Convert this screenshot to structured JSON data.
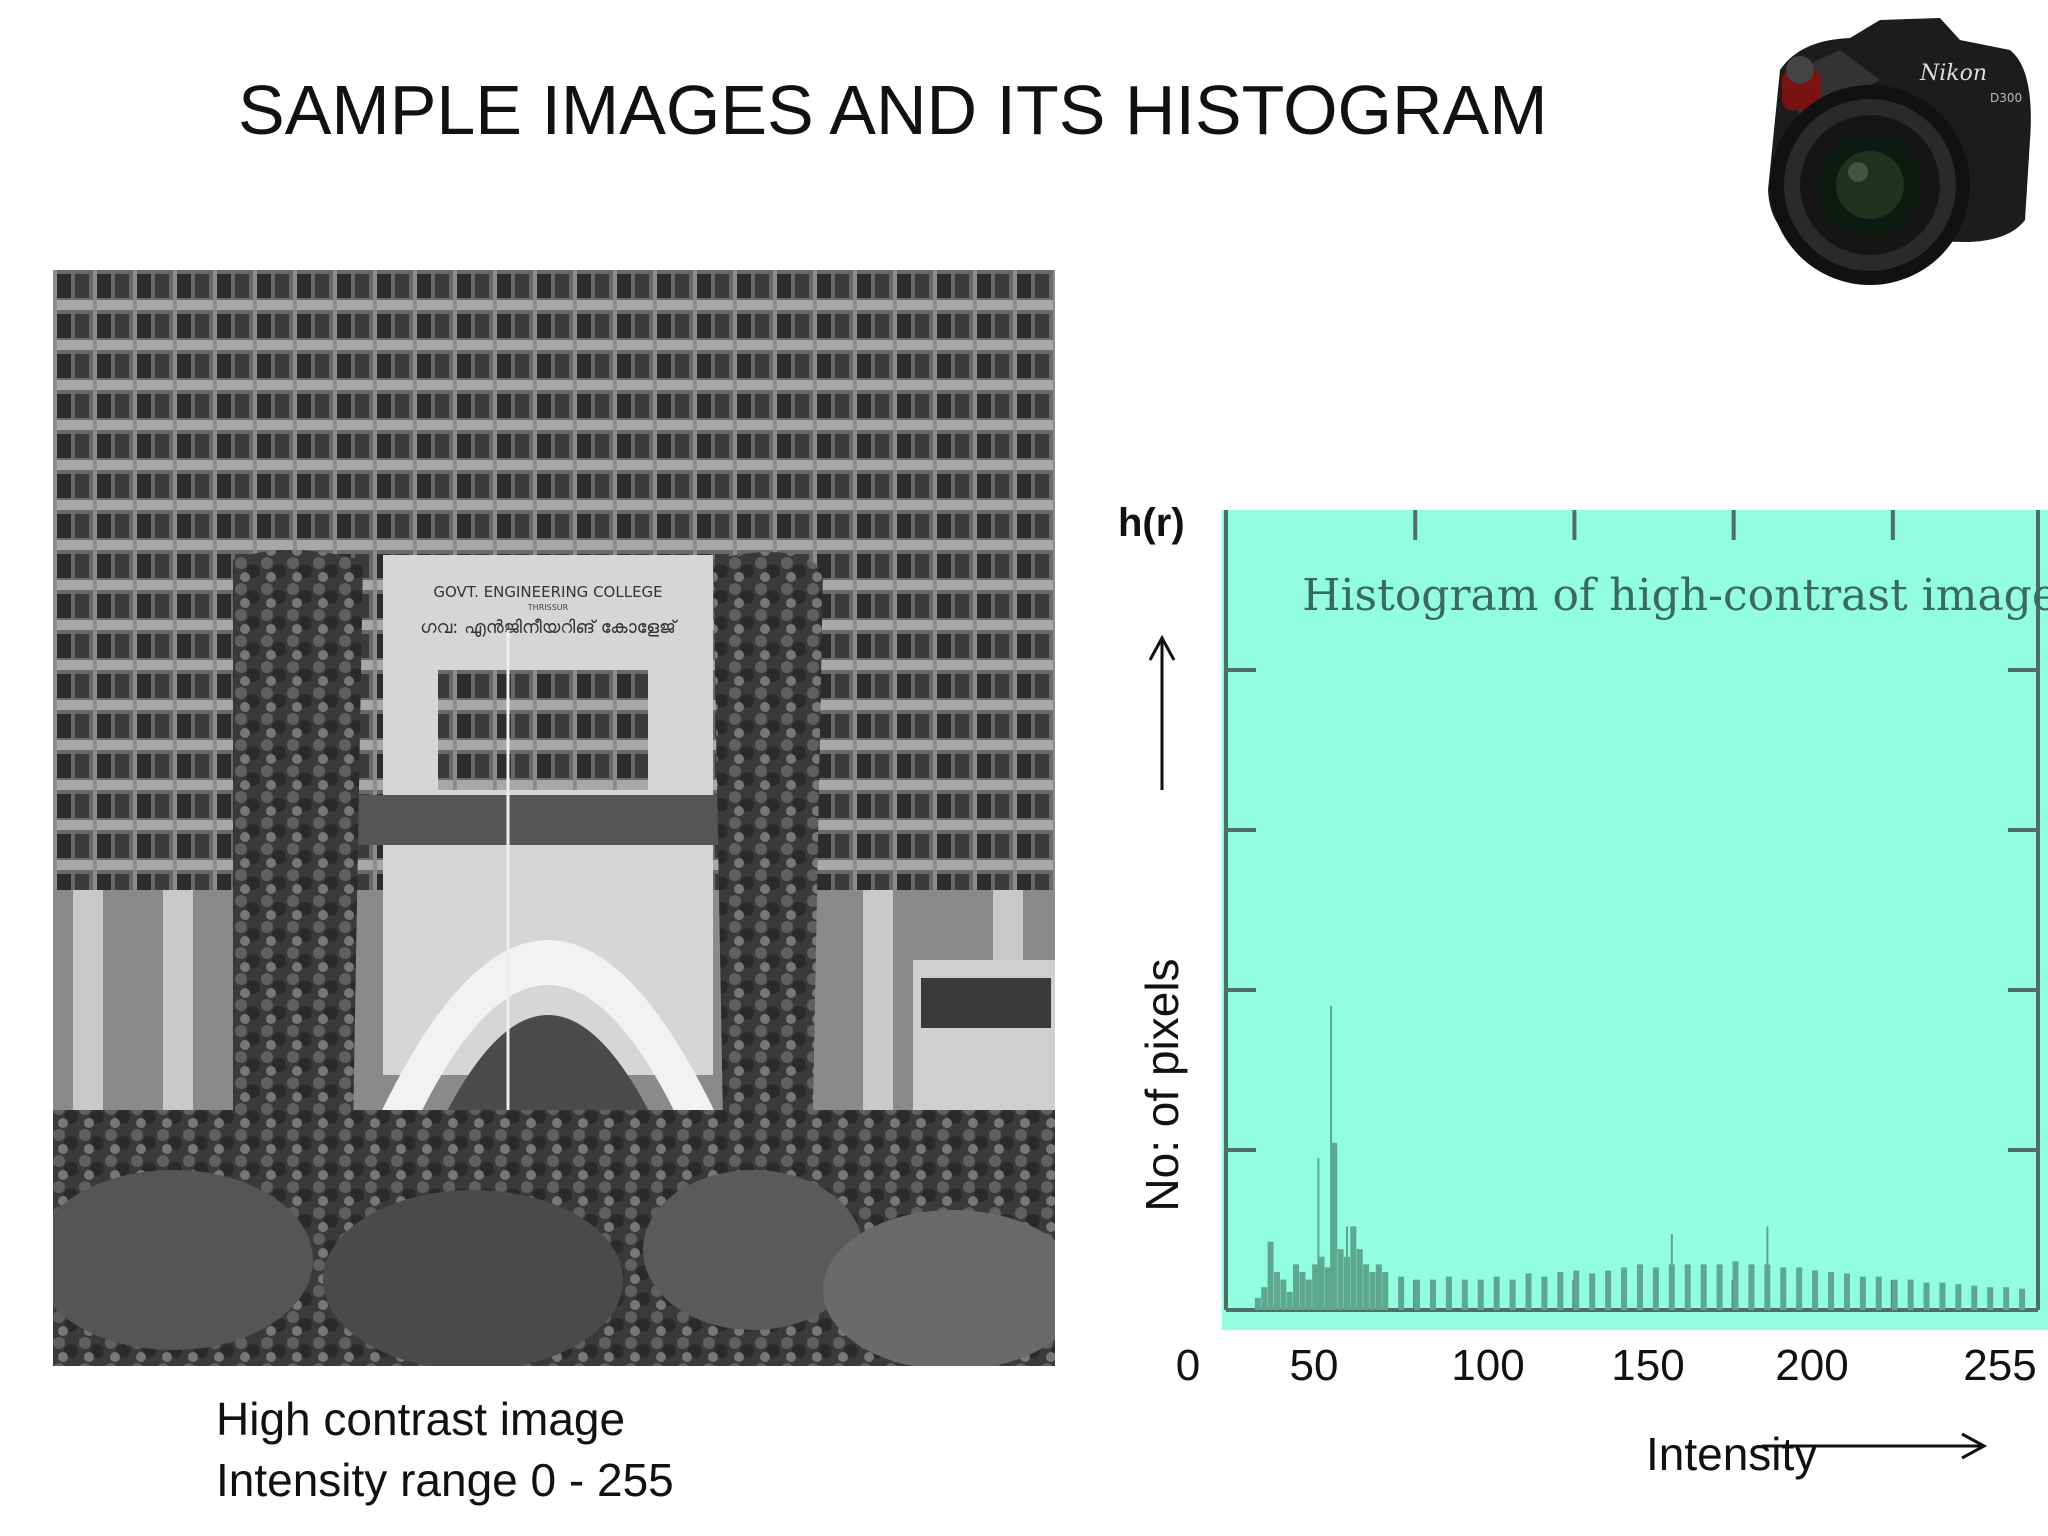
{
  "slide": {
    "title": "SAMPLE IMAGES AND ITS HISTOGRAM",
    "caption_line1": "High contrast image",
    "caption_line2": "Intensity range 0 -  255",
    "photo_sign_line1": "GOVT. ENGINEERING  COLLEGE",
    "photo_sign_line2": "ഗവ: എന്‍ജിനീയറിങ് കോളേജ്",
    "photo_sign_line3": "THRISSUR",
    "camera_brand": "Nikon",
    "camera_model": "D300"
  },
  "colors": {
    "plot_bg": "#93fde0",
    "bars": "#5da88f",
    "axis": "#4f6f66",
    "title_on_plot": "#3a6a5f"
  },
  "chart_data": {
    "type": "bar",
    "title": "Histogram of high-contrast image",
    "ylabel_short": "h(r)",
    "ylabel": "No: of pixels",
    "xlabel": "Intensity",
    "xticks": [
      "0",
      "50",
      "100",
      "150",
      "200",
      "255"
    ],
    "xlim": [
      0,
      255
    ],
    "ylim": [
      0,
      5
    ],
    "grid": false,
    "x": [
      10,
      12,
      14,
      16,
      18,
      20,
      22,
      24,
      26,
      28,
      30,
      32,
      34,
      36,
      38,
      40,
      42,
      44,
      46,
      48,
      50,
      55,
      60,
      65,
      70,
      75,
      80,
      85,
      90,
      95,
      100,
      105,
      110,
      115,
      120,
      125,
      130,
      135,
      140,
      145,
      150,
      155,
      160,
      165,
      170,
      175,
      180,
      185,
      190,
      195,
      200,
      205,
      210,
      215,
      220,
      225,
      230,
      235,
      240,
      245,
      250
    ],
    "values": [
      0.08,
      0.15,
      0.45,
      0.25,
      0.2,
      0.12,
      0.3,
      0.25,
      0.2,
      0.3,
      0.35,
      0.28,
      1.1,
      0.4,
      0.35,
      0.55,
      0.4,
      0.3,
      0.25,
      0.3,
      0.25,
      0.22,
      0.2,
      0.2,
      0.22,
      0.2,
      0.2,
      0.22,
      0.2,
      0.24,
      0.22,
      0.25,
      0.26,
      0.24,
      0.26,
      0.28,
      0.3,
      0.28,
      0.3,
      0.3,
      0.3,
      0.3,
      0.32,
      0.3,
      0.3,
      0.28,
      0.28,
      0.26,
      0.25,
      0.24,
      0.22,
      0.22,
      0.2,
      0.2,
      0.18,
      0.18,
      0.17,
      0.16,
      0.15,
      0.15,
      0.14
    ],
    "spikes": [
      {
        "x": 33,
        "y": 2.0
      },
      {
        "x": 29,
        "y": 1.0
      },
      {
        "x": 38,
        "y": 0.55
      },
      {
        "x": 170,
        "y": 0.55
      },
      {
        "x": 140,
        "y": 0.5
      }
    ]
  }
}
